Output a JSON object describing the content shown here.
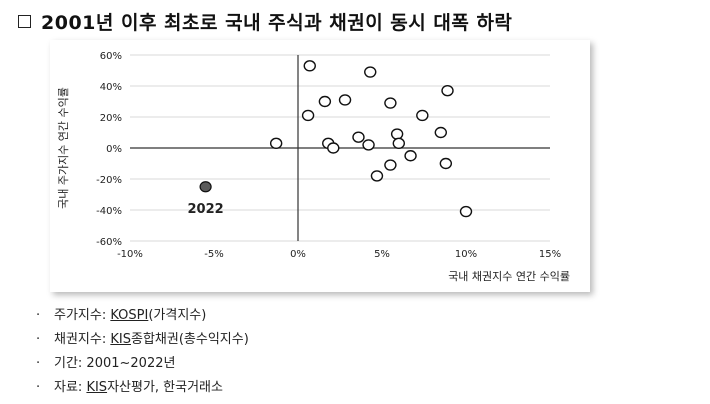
{
  "header": {
    "title": "2001년 이후 최초로 국내 주식과 채권이 동시 대폭 하락"
  },
  "chart_data": {
    "type": "scatter",
    "xlabel": "국내 채권지수 연간 수익률",
    "ylabel": "국내 주가지수 연간 수익률",
    "xlim": [
      -0.1,
      0.15
    ],
    "ylim": [
      -0.6,
      0.6
    ],
    "x_ticks": [
      "-10%",
      "-5%",
      "0%",
      "5%",
      "10%",
      "15%"
    ],
    "y_ticks": [
      "60%",
      "40%",
      "20%",
      "0%",
      "-20%",
      "-40%",
      "-60%"
    ],
    "grid": "horizontal",
    "points": [
      {
        "x": 0.007,
        "y": 0.53
      },
      {
        "x": 0.043,
        "y": 0.49
      },
      {
        "x": 0.089,
        "y": 0.37
      },
      {
        "x": 0.016,
        "y": 0.3
      },
      {
        "x": 0.028,
        "y": 0.31
      },
      {
        "x": 0.055,
        "y": 0.29
      },
      {
        "x": 0.006,
        "y": 0.21
      },
      {
        "x": 0.074,
        "y": 0.21
      },
      {
        "x": 0.085,
        "y": 0.1
      },
      {
        "x": 0.059,
        "y": 0.09
      },
      {
        "x": 0.036,
        "y": 0.07
      },
      {
        "x": -0.013,
        "y": 0.03
      },
      {
        "x": 0.018,
        "y": 0.03
      },
      {
        "x": 0.021,
        "y": 0.0
      },
      {
        "x": 0.042,
        "y": 0.02
      },
      {
        "x": 0.06,
        "y": 0.03
      },
      {
        "x": 0.067,
        "y": -0.05
      },
      {
        "x": 0.055,
        "y": -0.11
      },
      {
        "x": 0.088,
        "y": -0.1
      },
      {
        "x": 0.047,
        "y": -0.18
      },
      {
        "x": 0.1,
        "y": -0.41
      }
    ],
    "highlight": {
      "x": -0.055,
      "y": -0.25,
      "label": "2022"
    }
  },
  "notes": [
    {
      "prefix": "주가지수: ",
      "u": "KOSPI",
      "suffix": "(가격지수)"
    },
    {
      "prefix": "채권지수: ",
      "u": "KIS",
      "suffix": "종합채권(총수익지수)"
    },
    {
      "prefix": "기간: 2001~2022년",
      "u": "",
      "suffix": ""
    },
    {
      "prefix": "자료: ",
      "u": "KIS",
      "suffix": "자산평가, 한국거래소"
    }
  ],
  "colors": {
    "highlight": "#5a5a5a",
    "grid": "#d9d9d9",
    "axis": "#333333"
  }
}
